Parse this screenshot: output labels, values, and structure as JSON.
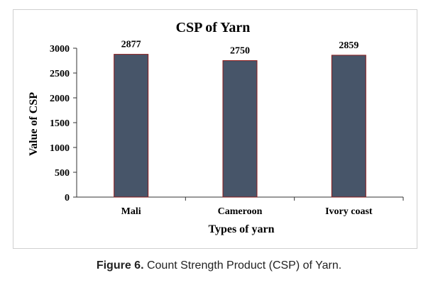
{
  "chart_data": {
    "type": "bar",
    "title": "CSP of Yarn",
    "xlabel": "Types of yarn",
    "ylabel": "Value of CSP",
    "categories": [
      "Mali",
      "Cameroon",
      "Ivory coast"
    ],
    "values": [
      2877,
      2750,
      2859
    ],
    "data_labels": [
      "2877",
      "2750",
      "2859"
    ],
    "ylim": [
      0,
      3000
    ],
    "yticks": [
      0,
      500,
      1000,
      1500,
      2000,
      2500,
      3000
    ],
    "grid": false,
    "legend": "none",
    "colors": {
      "bar_fill": "#475569",
      "bar_edge": "#8b1a1a",
      "axis": "#333333"
    }
  },
  "caption": {
    "label": "Figure 6.",
    "text": " Count Strength Product (CSP) of Yarn."
  }
}
